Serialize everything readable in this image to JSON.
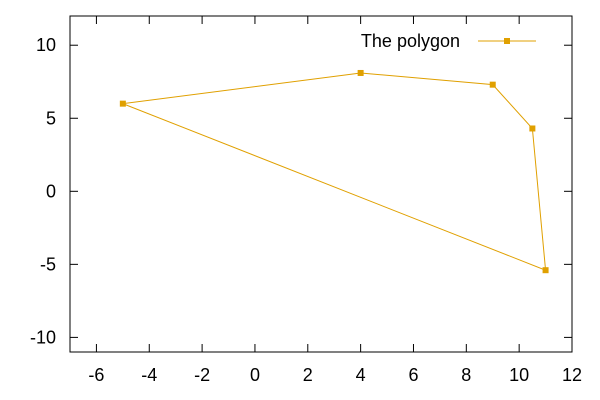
{
  "chart_data": {
    "type": "line",
    "title": "",
    "xlabel": "",
    "ylabel": "",
    "xlim": [
      -7,
      12
    ],
    "ylim": [
      -11,
      12
    ],
    "x_ticks": [
      -6,
      -4,
      -2,
      0,
      2,
      4,
      6,
      8,
      10,
      12
    ],
    "y_ticks": [
      -10,
      -5,
      0,
      5,
      10
    ],
    "x_tick_labels": [
      "-6",
      "-4",
      "-2",
      "0",
      "2",
      "4",
      "6",
      "8",
      "10",
      "12"
    ],
    "y_tick_labels": [
      "-10",
      "-5",
      "0",
      "5",
      "10"
    ],
    "grid": false,
    "legend": {
      "position": "top-right",
      "entries": [
        "The polygon"
      ]
    },
    "series": [
      {
        "name": "The polygon",
        "color": "#e0a000",
        "marker": "filled-square",
        "closed": true,
        "x": [
          -5,
          4,
          9,
          10.5,
          11,
          -5
        ],
        "y": [
          6,
          8.1,
          7.3,
          4.3,
          -5.4,
          6
        ]
      }
    ]
  }
}
